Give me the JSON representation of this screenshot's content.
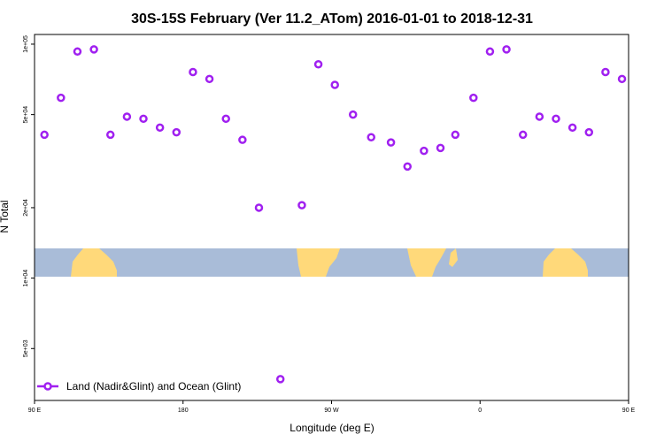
{
  "chart_data": {
    "type": "scatter",
    "title": "30S-15S February (Ver 11.2_ATom)   2016-01-01 to 2018-12-31",
    "xlabel": "Longitude (deg E)",
    "ylabel": "N Total",
    "xlim": [
      90,
      450
    ],
    "ylim": [
      3000,
      110000
    ],
    "y_scale": "log",
    "x_ticks": [
      {
        "value": 90,
        "label": "90 E"
      },
      {
        "value": 180,
        "label": "180"
      },
      {
        "value": 270,
        "label": "90 W"
      },
      {
        "value": 360,
        "label": "0"
      },
      {
        "value": 450,
        "label": "90 E"
      },
      {
        "value": 540,
        "label": "180"
      }
    ],
    "y_ticks": [
      {
        "value": 5000,
        "label": "5e+03"
      },
      {
        "value": 10000,
        "label": "1e+04"
      },
      {
        "value": 20000,
        "label": "2e+04"
      },
      {
        "value": 50000,
        "label": "5e+04"
      },
      {
        "value": 100000,
        "label": "1e+05"
      }
    ],
    "legend_position": "bottom-left",
    "series": [
      {
        "name": "Land (Nadir&Glint) and Ocean (Glint)",
        "color": "#a020f0",
        "x": [
          96,
          106,
          116,
          126,
          136,
          146,
          156,
          166,
          176,
          186,
          196,
          206,
          216,
          226,
          239,
          252,
          262,
          272,
          283,
          294,
          306,
          316,
          326,
          336,
          345,
          356,
          366,
          376,
          386,
          396,
          406,
          416,
          426,
          436,
          446
        ],
        "y": [
          41000,
          59000,
          93000,
          95000,
          41000,
          49000,
          48000,
          44000,
          42000,
          76000,
          71000,
          48000,
          39000,
          20000,
          3700,
          20500,
          82000,
          67000,
          50000,
          40000,
          38000,
          30000,
          35000,
          36000,
          41000,
          59000,
          93000,
          95000,
          41000,
          49000,
          48000,
          44000,
          42000,
          76000,
          71000
        ]
      }
    ],
    "map_band": {
      "ocean_color": "#a9bcd8",
      "land_color": "#ffd97a"
    }
  }
}
